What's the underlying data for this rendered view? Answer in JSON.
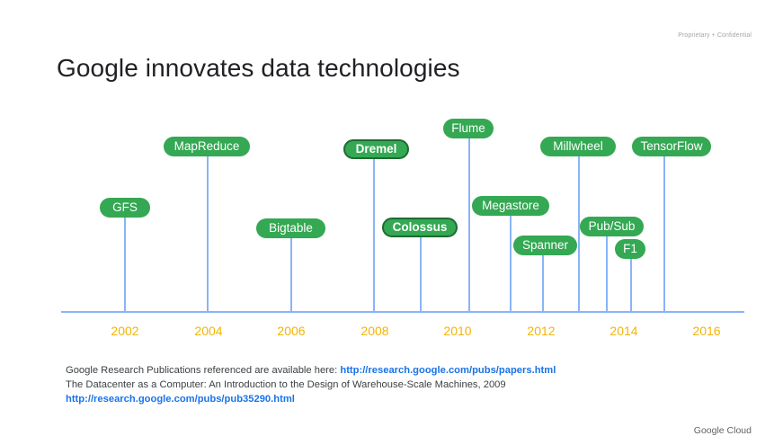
{
  "header": {
    "confidential": "Proprietary + Confidential",
    "title": "Google innovates data technologies"
  },
  "timeline": {
    "years": [
      "2002",
      "2004",
      "2006",
      "2008",
      "2010",
      "2012",
      "2014",
      "2016"
    ],
    "technologies": [
      {
        "label": "GFS",
        "emphasis": false
      },
      {
        "label": "MapReduce",
        "emphasis": false
      },
      {
        "label": "Bigtable",
        "emphasis": false
      },
      {
        "label": "Dremel",
        "emphasis": true
      },
      {
        "label": "Colossus",
        "emphasis": true
      },
      {
        "label": "Flume",
        "emphasis": false
      },
      {
        "label": "Megastore",
        "emphasis": false
      },
      {
        "label": "Spanner",
        "emphasis": false
      },
      {
        "label": "Millwheel",
        "emphasis": false
      },
      {
        "label": "Pub/Sub",
        "emphasis": false
      },
      {
        "label": "F1",
        "emphasis": false
      },
      {
        "label": "TensorFlow",
        "emphasis": false
      }
    ]
  },
  "references": {
    "line1_text": "Google Research Publications referenced are available here:",
    "line1_link": "http://research.google.com/pubs/papers.html",
    "line2_text": "The Datacenter as a Computer: An Introduction to the Design of Warehouse-Scale Machines, 2009",
    "line3_link": "http://research.google.com/pubs/pub35290.html"
  },
  "footer": {
    "brand": "Google Cloud"
  },
  "colors": {
    "pill": "#34a853",
    "axis": "#8ab4f8",
    "year": "#f4b400",
    "link": "#1a73e8"
  }
}
